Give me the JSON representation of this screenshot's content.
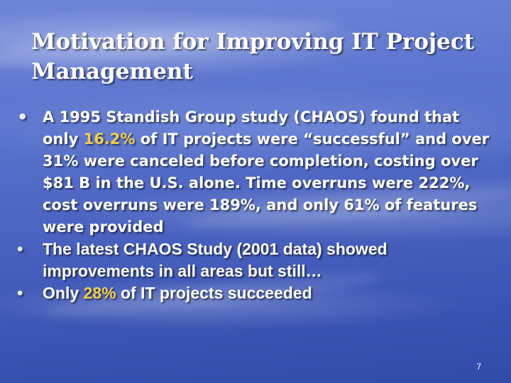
{
  "slide": {
    "title": "Motivation for Improving IT Project Management",
    "page_number": "7",
    "highlight_color": "#f2cf4a",
    "bullet_icon": "bullet-dot-icon"
  },
  "bullets": [
    {
      "before": "A 1995 Standish Group study (CHAOS) found that only ",
      "highlight": "16.2%",
      "after": " of IT projects were “successful” and over 31% were canceled before completion, costing over $81 B in the U.S. alone.  Time overruns were 222%, cost overruns were 189%, and only 61% of features were provided"
    },
    {
      "text": "The latest CHAOS Study (2001 data) showed improvements in all areas but still…"
    },
    {
      "before": "Only ",
      "highlight": "28%",
      "after": " of IT projects succeeded"
    }
  ]
}
